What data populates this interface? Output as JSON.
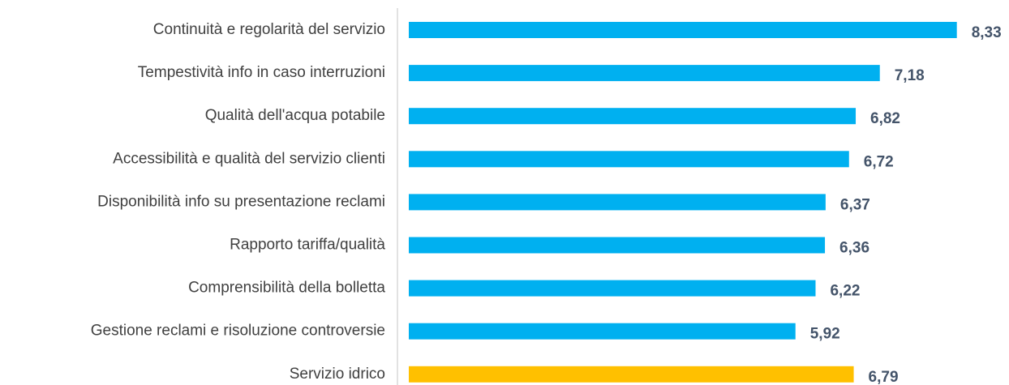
{
  "chart_data": {
    "type": "bar",
    "orientation": "horizontal",
    "categories": [
      "Continuità e regolarità del servizio",
      "Tempestività info in caso interruzioni",
      "Qualità dell'acqua potabile",
      "Accessibilità e qualità del servizio clienti",
      "Disponibilità info su presentazione reclami",
      "Rapporto tariffa/qualità",
      "Comprensibilità della bolletta",
      "Gestione reclami e risoluzione controversie",
      "Servizio idrico"
    ],
    "values": [
      8.33,
      7.18,
      6.82,
      6.72,
      6.37,
      6.36,
      6.22,
      5.92,
      6.79
    ],
    "value_labels": [
      "8,33",
      "7,18",
      "6,82",
      "6,72",
      "6,37",
      "6,36",
      "6,22",
      "5,92",
      "6,79"
    ],
    "colors": [
      "#00b0f0",
      "#00b0f0",
      "#00b0f0",
      "#00b0f0",
      "#00b0f0",
      "#00b0f0",
      "#00b0f0",
      "#00b0f0",
      "#ffc000"
    ],
    "xlim": [
      0,
      9
    ]
  }
}
